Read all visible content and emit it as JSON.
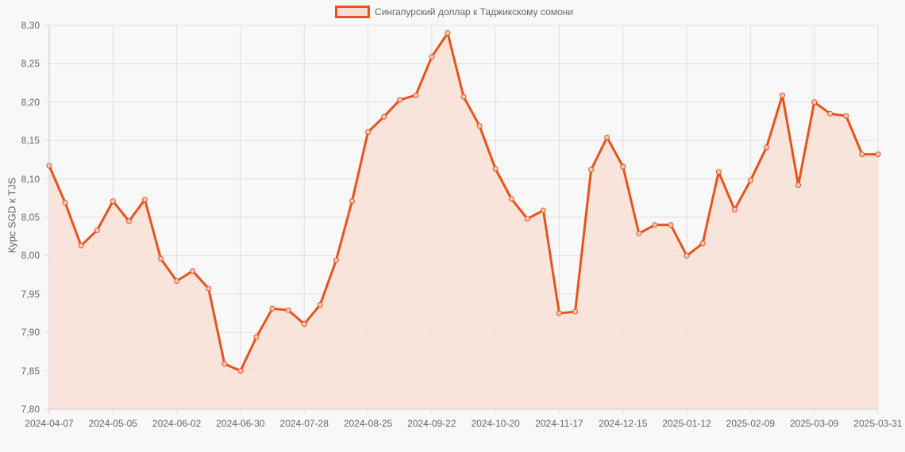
{
  "chart_data": {
    "type": "line",
    "title": "",
    "legend": [
      "Сингапурский доллар к Таджикскому сомони"
    ],
    "legend_position": "top",
    "xlabel": "",
    "ylabel": "Курс SGD к TJS",
    "ylim": [
      7.8,
      8.3
    ],
    "grid": true,
    "y_ticks": [
      "8,30",
      "8,25",
      "8,20",
      "8,15",
      "8,10",
      "8,05",
      "8,00",
      "7,95",
      "7,90",
      "7,85",
      "7,80"
    ],
    "x_ticks": [
      "2024-04-07",
      "2024-05-05",
      "2024-06-02",
      "2024-06-30",
      "2024-07-28",
      "2024-08-25",
      "2024-09-22",
      "2024-10-20",
      "2024-11-17",
      "2024-12-15",
      "2025-01-12",
      "2025-02-09",
      "2025-03-09",
      "2025-03-31"
    ],
    "series": [
      {
        "name": "Сингапурский доллар к Таджикскому сомони",
        "color": "#e8531c",
        "fill": "#f8e0d6",
        "values": [
          8.117,
          8.069,
          8.013,
          8.033,
          8.071,
          8.045,
          8.073,
          7.996,
          7.967,
          7.98,
          7.957,
          7.859,
          7.85,
          7.894,
          7.931,
          7.929,
          7.911,
          7.936,
          7.994,
          8.071,
          8.161,
          8.181,
          8.203,
          8.209,
          8.259,
          8.29,
          8.207,
          8.169,
          8.113,
          8.074,
          8.048,
          8.059,
          7.925,
          7.927,
          8.112,
          8.154,
          8.116,
          8.029,
          8.04,
          8.04,
          8.0,
          8.016,
          8.109,
          8.06,
          8.098,
          8.141,
          8.209,
          8.092,
          8.2,
          8.185,
          8.182,
          8.132,
          8.132
        ]
      }
    ]
  }
}
